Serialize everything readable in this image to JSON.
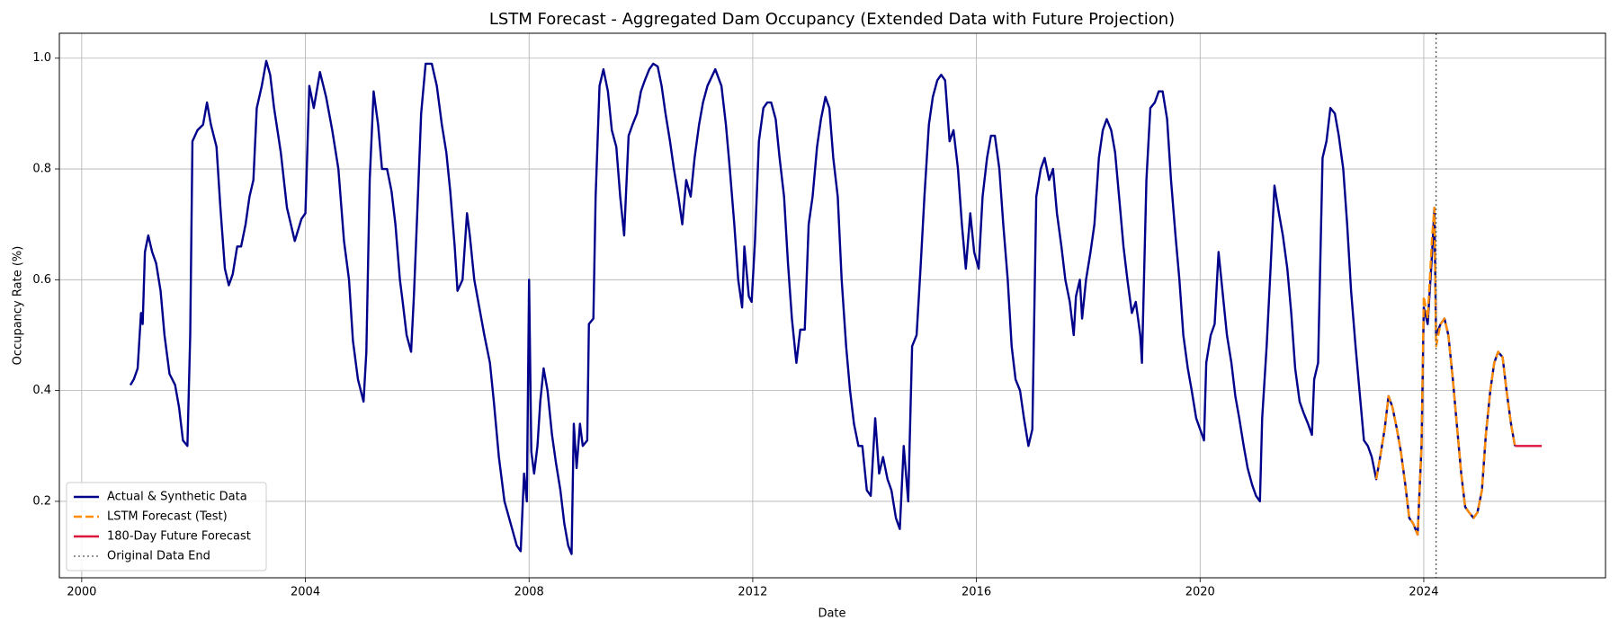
{
  "chart_data": {
    "type": "line",
    "title": "LSTM Forecast - Aggregated Dam Occupancy (Extended Data with Future Projection)",
    "x_label": "Date",
    "y_label": "Occupancy Rate (%)",
    "xlim": [
      1999.6,
      2027.25
    ],
    "ylim": [
      0.062,
      1.045
    ],
    "xticks": [
      2000,
      2004,
      2008,
      2012,
      2016,
      2020,
      2024
    ],
    "yticks": [
      0.2,
      0.4,
      0.6,
      0.8,
      {
        "value": 1,
        "label": "1.0"
      }
    ],
    "grid": true,
    "legend": "lower left",
    "series": [
      {
        "name": "Actual & Synthetic Data",
        "color": "#00008b",
        "style": "solid",
        "x": [
          2000.87,
          2000.93,
          2001.0,
          2001.06,
          2001.09,
          2001.13,
          2001.19,
          2001.26,
          2001.33,
          2001.41,
          2001.48,
          2001.57,
          2001.67,
          2001.74,
          2001.81,
          2001.89,
          2001.94,
          2001.98,
          2002.07,
          2002.17,
          2002.24,
          2002.31,
          2002.41,
          2002.48,
          2002.56,
          2002.63,
          2002.7,
          2002.78,
          2002.85,
          2002.93,
          2003.0,
          2003.07,
          2003.13,
          2003.22,
          2003.3,
          2003.37,
          2003.44,
          2003.56,
          2003.67,
          2003.81,
          2003.93,
          2004.0,
          2004.07,
          2004.15,
          2004.26,
          2004.37,
          2004.48,
          2004.59,
          2004.69,
          2004.78,
          2004.85,
          2004.94,
          2005.04,
          2005.09,
          2005.15,
          2005.22,
          2005.3,
          2005.37,
          2005.46,
          2005.54,
          2005.61,
          2005.69,
          2005.74,
          2005.81,
          2005.89,
          2005.94,
          2006.0,
          2006.07,
          2006.15,
          2006.26,
          2006.35,
          2006.44,
          2006.52,
          2006.59,
          2006.67,
          2006.72,
          2006.81,
          2006.89,
          2006.94,
          2007.02,
          2007.11,
          2007.2,
          2007.3,
          2007.37,
          2007.46,
          2007.56,
          2007.67,
          2007.78,
          2007.85,
          2007.91,
          2007.96,
          2008.0,
          2008.04,
          2008.09,
          2008.15,
          2008.2,
          2008.26,
          2008.33,
          2008.41,
          2008.48,
          2008.56,
          2008.63,
          2008.7,
          2008.76,
          2008.8,
          2008.85,
          2008.91,
          2008.96,
          2009.04,
          2009.07,
          2009.15,
          2009.19,
          2009.26,
          2009.33,
          2009.41,
          2009.48,
          2009.56,
          2009.63,
          2009.7,
          2009.78,
          2009.85,
          2009.93,
          2010.0,
          2010.07,
          2010.15,
          2010.22,
          2010.3,
          2010.37,
          2010.44,
          2010.52,
          2010.59,
          2010.67,
          2010.74,
          2010.81,
          2010.89,
          2010.96,
          2011.04,
          2011.11,
          2011.19,
          2011.33,
          2011.44,
          2011.52,
          2011.59,
          2011.67,
          2011.74,
          2011.81,
          2011.85,
          2011.93,
          2011.98,
          2012.04,
          2012.11,
          2012.19,
          2012.26,
          2012.33,
          2012.41,
          2012.48,
          2012.56,
          2012.63,
          2012.7,
          2012.78,
          2012.85,
          2012.93,
          2013.0,
          2013.07,
          2013.15,
          2013.22,
          2013.3,
          2013.37,
          2013.44,
          2013.52,
          2013.59,
          2013.67,
          2013.74,
          2013.81,
          2013.89,
          2013.96,
          2014.04,
          2014.11,
          2014.19,
          2014.26,
          2014.33,
          2014.41,
          2014.48,
          2014.56,
          2014.63,
          2014.7,
          2014.78,
          2014.85,
          2014.93,
          2015.0,
          2015.07,
          2015.15,
          2015.22,
          2015.3,
          2015.37,
          2015.44,
          2015.52,
          2015.59,
          2015.67,
          2015.74,
          2015.81,
          2015.89,
          2015.96,
          2016.04,
          2016.11,
          2016.19,
          2016.26,
          2016.33,
          2016.41,
          2016.48,
          2016.56,
          2016.63,
          2016.7,
          2016.78,
          2016.85,
          2016.93,
          2017.0,
          2017.07,
          2017.15,
          2017.22,
          2017.3,
          2017.37,
          2017.44,
          2017.52,
          2017.59,
          2017.67,
          2017.74,
          2017.78,
          2017.85,
          2017.89,
          2017.96,
          2018.04,
          2018.11,
          2018.19,
          2018.26,
          2018.33,
          2018.41,
          2018.48,
          2018.56,
          2018.63,
          2018.7,
          2018.78,
          2018.85,
          2018.93,
          2018.96,
          2019.04,
          2019.11,
          2019.19,
          2019.26,
          2019.33,
          2019.41,
          2019.48,
          2019.56,
          2019.63,
          2019.7,
          2019.78,
          2019.85,
          2019.93,
          2020.0,
          2020.07,
          2020.11,
          2020.19,
          2020.26,
          2020.33,
          2020.41,
          2020.48,
          2020.56,
          2020.63,
          2020.7,
          2020.78,
          2020.85,
          2020.93,
          2021.0,
          2021.07,
          2021.11,
          2021.19,
          2021.26,
          2021.33,
          2021.41,
          2021.48,
          2021.56,
          2021.63,
          2021.7,
          2021.78,
          2021.85,
          2021.93,
          2022.0,
          2022.04,
          2022.11,
          2022.19,
          2022.26,
          2022.33,
          2022.41,
          2022.48,
          2022.56,
          2022.63,
          2022.7,
          2022.78,
          2022.85,
          2022.93,
          2023.0,
          2023.07,
          2023.15,
          2023.22,
          2023.3,
          2023.37,
          2023.44,
          2023.52,
          2023.59,
          2023.67,
          2023.74,
          2023.81,
          2023.89,
          2023.96,
          2024.0,
          2024.07,
          2024.15,
          2024.19,
          2024.22,
          2024.3,
          2024.37,
          2024.44,
          2024.52,
          2024.59,
          2024.67,
          2024.74,
          2024.81,
          2024.89,
          2024.96,
          2025.04,
          2025.11,
          2025.19,
          2025.26,
          2025.33,
          2025.41,
          2025.48,
          2025.56,
          2025.63
        ],
        "values": [
          0.41,
          0.42,
          0.44,
          0.54,
          0.52,
          0.65,
          0.68,
          0.65,
          0.63,
          0.58,
          0.5,
          0.43,
          0.41,
          0.37,
          0.31,
          0.3,
          0.5,
          0.85,
          0.87,
          0.88,
          0.92,
          0.88,
          0.84,
          0.73,
          0.62,
          0.59,
          0.61,
          0.66,
          0.66,
          0.7,
          0.75,
          0.78,
          0.91,
          0.95,
          0.995,
          0.97,
          0.91,
          0.83,
          0.73,
          0.67,
          0.71,
          0.72,
          0.95,
          0.91,
          0.975,
          0.93,
          0.87,
          0.8,
          0.67,
          0.6,
          0.49,
          0.42,
          0.38,
          0.47,
          0.78,
          0.94,
          0.88,
          0.8,
          0.8,
          0.76,
          0.7,
          0.6,
          0.56,
          0.5,
          0.47,
          0.57,
          0.72,
          0.9,
          0.99,
          0.99,
          0.95,
          0.88,
          0.83,
          0.76,
          0.66,
          0.58,
          0.6,
          0.72,
          0.68,
          0.6,
          0.55,
          0.5,
          0.45,
          0.38,
          0.28,
          0.2,
          0.16,
          0.12,
          0.11,
          0.25,
          0.2,
          0.6,
          0.29,
          0.25,
          0.3,
          0.38,
          0.44,
          0.4,
          0.32,
          0.27,
          0.22,
          0.16,
          0.12,
          0.105,
          0.34,
          0.26,
          0.34,
          0.3,
          0.31,
          0.52,
          0.53,
          0.75,
          0.95,
          0.98,
          0.94,
          0.87,
          0.84,
          0.75,
          0.68,
          0.86,
          0.88,
          0.9,
          0.94,
          0.96,
          0.98,
          0.99,
          0.985,
          0.95,
          0.9,
          0.85,
          0.8,
          0.75,
          0.7,
          0.78,
          0.75,
          0.82,
          0.88,
          0.92,
          0.95,
          0.98,
          0.95,
          0.88,
          0.8,
          0.7,
          0.6,
          0.55,
          0.66,
          0.57,
          0.56,
          0.67,
          0.85,
          0.91,
          0.92,
          0.92,
          0.89,
          0.82,
          0.75,
          0.63,
          0.53,
          0.45,
          0.51,
          0.51,
          0.7,
          0.75,
          0.84,
          0.89,
          0.93,
          0.91,
          0.82,
          0.75,
          0.6,
          0.48,
          0.4,
          0.34,
          0.3,
          0.3,
          0.22,
          0.21,
          0.35,
          0.25,
          0.28,
          0.24,
          0.22,
          0.17,
          0.15,
          0.3,
          0.2,
          0.48,
          0.5,
          0.62,
          0.75,
          0.88,
          0.93,
          0.96,
          0.97,
          0.96,
          0.85,
          0.87,
          0.8,
          0.7,
          0.62,
          0.72,
          0.65,
          0.62,
          0.75,
          0.82,
          0.86,
          0.86,
          0.8,
          0.7,
          0.6,
          0.48,
          0.42,
          0.4,
          0.35,
          0.3,
          0.33,
          0.75,
          0.8,
          0.82,
          0.78,
          0.8,
          0.72,
          0.66,
          0.6,
          0.56,
          0.5,
          0.57,
          0.6,
          0.53,
          0.6,
          0.65,
          0.7,
          0.82,
          0.87,
          0.89,
          0.87,
          0.83,
          0.74,
          0.66,
          0.6,
          0.54,
          0.56,
          0.5,
          0.45,
          0.78,
          0.91,
          0.92,
          0.94,
          0.94,
          0.89,
          0.78,
          0.68,
          0.6,
          0.5,
          0.44,
          0.4,
          0.35,
          0.33,
          0.31,
          0.45,
          0.5,
          0.52,
          0.65,
          0.57,
          0.5,
          0.45,
          0.39,
          0.35,
          0.3,
          0.26,
          0.23,
          0.21,
          0.2,
          0.35,
          0.48,
          0.62,
          0.77,
          0.72,
          0.68,
          0.62,
          0.54,
          0.44,
          0.38,
          0.36,
          0.34,
          0.32,
          0.42,
          0.45,
          0.82,
          0.85,
          0.91,
          0.9,
          0.86,
          0.8,
          0.7,
          0.58,
          0.48,
          0.4,
          0.31,
          0.3,
          0.28,
          0.24,
          0.28,
          0.33,
          0.39,
          0.37,
          0.33,
          0.29,
          0.23,
          0.17,
          0.16,
          0.14,
          0.3,
          0.55,
          0.52,
          0.65,
          0.73,
          0.5,
          0.52,
          0.53,
          0.5,
          0.42,
          0.34,
          0.25,
          0.19,
          0.18,
          0.17,
          0.18,
          0.22,
          0.32,
          0.4,
          0.45,
          0.47,
          0.46,
          0.4,
          0.34,
          0.3
        ]
      },
      {
        "name": "LSTM Forecast (Test)",
        "color": "#ff8c00",
        "style": "dashed",
        "x": [
          2023.15,
          2023.22,
          2023.3,
          2023.37,
          2023.44,
          2023.52,
          2023.59,
          2023.67,
          2023.74,
          2023.81,
          2023.89,
          2023.96,
          2024.0,
          2024.07,
          2024.15,
          2024.19,
          2024.22,
          2024.3,
          2024.37,
          2024.44,
          2024.52,
          2024.59,
          2024.67,
          2024.74,
          2024.81,
          2024.89,
          2024.96,
          2025.04,
          2025.11,
          2025.19,
          2025.26,
          2025.33,
          2025.41,
          2025.48,
          2025.56,
          2025.63
        ],
        "values": [
          0.24,
          0.28,
          0.33,
          0.39,
          0.37,
          0.33,
          0.29,
          0.23,
          0.17,
          0.16,
          0.14,
          0.3,
          0.57,
          0.53,
          0.68,
          0.73,
          0.48,
          0.52,
          0.53,
          0.5,
          0.42,
          0.34,
          0.25,
          0.19,
          0.18,
          0.17,
          0.18,
          0.22,
          0.32,
          0.4,
          0.45,
          0.47,
          0.46,
          0.4,
          0.34,
          0.3
        ]
      },
      {
        "name": "180-Day Future Forecast",
        "color": "#dc143c",
        "style": "solid",
        "x": [
          2025.63,
          2025.7,
          2025.85,
          2026.0,
          2026.11
        ],
        "values": [
          0.3,
          0.3,
          0.3,
          0.3,
          0.3
        ]
      }
    ],
    "vline": {
      "name": "Original Data End",
      "x": 2024.22,
      "color": "#555555",
      "style": "dotted"
    }
  }
}
